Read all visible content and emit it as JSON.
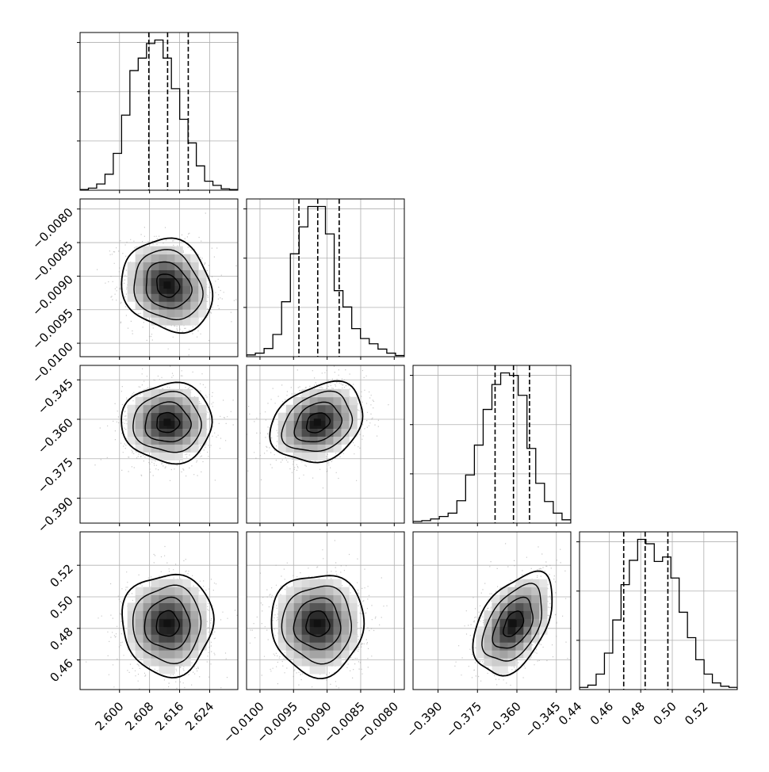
{
  "chart_data": {
    "type": "corner",
    "parameters": [
      {
        "lim": [
          2.5895,
          2.6315
        ],
        "ticks": [
          2.6,
          2.608,
          2.616,
          2.624
        ],
        "tick_labels": [
          "2.600",
          "2.608",
          "2.616",
          "2.624"
        ],
        "quantiles": [
          2.6078,
          2.6128,
          2.6183
        ],
        "hist_counts": [
          1,
          3,
          9,
          23,
          53,
          108,
          172,
          190,
          211,
          216,
          190,
          146,
          102,
          68,
          35,
          13,
          7,
          2,
          1
        ]
      },
      {
        "lim": [
          -0.0102,
          -0.00785
        ],
        "ticks": [
          -0.01,
          -0.0095,
          -0.009,
          -0.0085,
          -0.008
        ],
        "tick_labels": [
          "−0.0100",
          "−0.0095",
          "−0.0090",
          "−0.0085",
          "−0.0080"
        ],
        "quantiles": [
          -0.00942,
          -0.00914,
          -0.00882
        ],
        "hist_counts": [
          3,
          6,
          14,
          38,
          94,
          176,
          222,
          257,
          257,
          210,
          113,
          85,
          48,
          31,
          22,
          13,
          6,
          2
        ]
      },
      {
        "lim": [
          -0.3995,
          -0.3395
        ],
        "ticks": [
          -0.39,
          -0.375,
          -0.36,
          -0.345
        ],
        "tick_labels": [
          "−0.390",
          "−0.375",
          "−0.360",
          "−0.345"
        ],
        "quantiles": [
          -0.3683,
          -0.3613,
          -0.3552
        ],
        "hist_counts": [
          2,
          3,
          5,
          8,
          12,
          27,
          58,
          94,
          137,
          167,
          181,
          178,
          154,
          90,
          48,
          26,
          12,
          4
        ]
      },
      {
        "lim": [
          0.4412,
          0.5412
        ],
        "ticks": [
          0.44,
          0.46,
          0.48,
          0.5,
          0.52
        ],
        "tick_labels": [
          "0.44",
          "0.46",
          "0.48",
          "0.50",
          "0.52"
        ],
        "quantiles": [
          0.4692,
          0.4828,
          0.4972
        ],
        "hist_counts": [
          2,
          4,
          14,
          33,
          63,
          95,
          117,
          136,
          132,
          116,
          120,
          101,
          70,
          47,
          27,
          14,
          6,
          3,
          2
        ]
      }
    ],
    "scatter_extent_sigma": 3.2,
    "contour_levels": 4
  }
}
